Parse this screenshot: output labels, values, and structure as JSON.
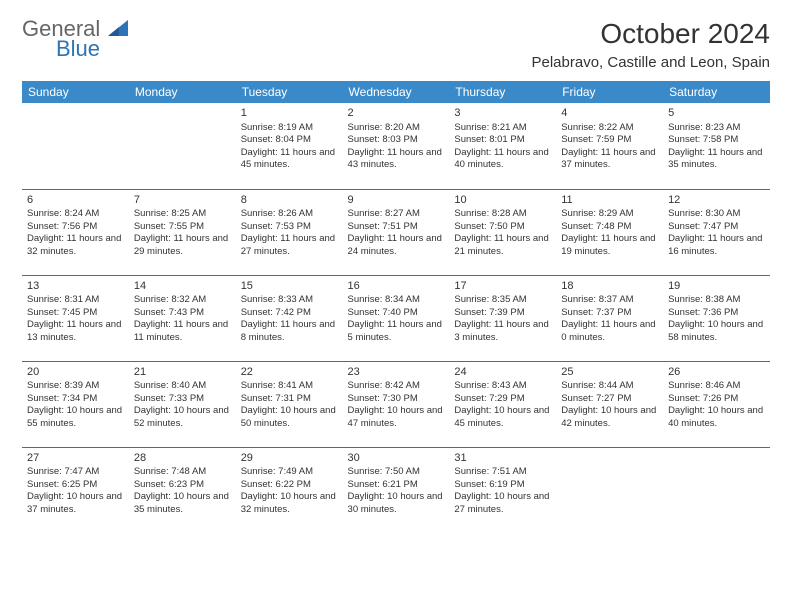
{
  "colors": {
    "header_bg": "#3a8ac9",
    "header_text": "#ffffff",
    "row_border": "#2e74b5",
    "body_text": "#333333",
    "logo_gray": "#666666",
    "logo_blue": "#2e74b5",
    "background": "#ffffff"
  },
  "typography": {
    "title_fontsize": 28,
    "location_fontsize": 15,
    "dayheader_fontsize": 12,
    "cell_fontsize": 9.5,
    "daynum_fontsize": 11
  },
  "logo": {
    "line1": "General",
    "line2": "Blue"
  },
  "title": "October 2024",
  "location": "Pelabravo, Castille and Leon, Spain",
  "day_headers": [
    "Sunday",
    "Monday",
    "Tuesday",
    "Wednesday",
    "Thursday",
    "Friday",
    "Saturday"
  ],
  "weeks": [
    [
      null,
      null,
      {
        "n": "1",
        "sr": "8:19 AM",
        "ss": "8:04 PM",
        "dl": "11 hours and 45 minutes."
      },
      {
        "n": "2",
        "sr": "8:20 AM",
        "ss": "8:03 PM",
        "dl": "11 hours and 43 minutes."
      },
      {
        "n": "3",
        "sr": "8:21 AM",
        "ss": "8:01 PM",
        "dl": "11 hours and 40 minutes."
      },
      {
        "n": "4",
        "sr": "8:22 AM",
        "ss": "7:59 PM",
        "dl": "11 hours and 37 minutes."
      },
      {
        "n": "5",
        "sr": "8:23 AM",
        "ss": "7:58 PM",
        "dl": "11 hours and 35 minutes."
      }
    ],
    [
      {
        "n": "6",
        "sr": "8:24 AM",
        "ss": "7:56 PM",
        "dl": "11 hours and 32 minutes."
      },
      {
        "n": "7",
        "sr": "8:25 AM",
        "ss": "7:55 PM",
        "dl": "11 hours and 29 minutes."
      },
      {
        "n": "8",
        "sr": "8:26 AM",
        "ss": "7:53 PM",
        "dl": "11 hours and 27 minutes."
      },
      {
        "n": "9",
        "sr": "8:27 AM",
        "ss": "7:51 PM",
        "dl": "11 hours and 24 minutes."
      },
      {
        "n": "10",
        "sr": "8:28 AM",
        "ss": "7:50 PM",
        "dl": "11 hours and 21 minutes."
      },
      {
        "n": "11",
        "sr": "8:29 AM",
        "ss": "7:48 PM",
        "dl": "11 hours and 19 minutes."
      },
      {
        "n": "12",
        "sr": "8:30 AM",
        "ss": "7:47 PM",
        "dl": "11 hours and 16 minutes."
      }
    ],
    [
      {
        "n": "13",
        "sr": "8:31 AM",
        "ss": "7:45 PM",
        "dl": "11 hours and 13 minutes."
      },
      {
        "n": "14",
        "sr": "8:32 AM",
        "ss": "7:43 PM",
        "dl": "11 hours and 11 minutes."
      },
      {
        "n": "15",
        "sr": "8:33 AM",
        "ss": "7:42 PM",
        "dl": "11 hours and 8 minutes."
      },
      {
        "n": "16",
        "sr": "8:34 AM",
        "ss": "7:40 PM",
        "dl": "11 hours and 5 minutes."
      },
      {
        "n": "17",
        "sr": "8:35 AM",
        "ss": "7:39 PM",
        "dl": "11 hours and 3 minutes."
      },
      {
        "n": "18",
        "sr": "8:37 AM",
        "ss": "7:37 PM",
        "dl": "11 hours and 0 minutes."
      },
      {
        "n": "19",
        "sr": "8:38 AM",
        "ss": "7:36 PM",
        "dl": "10 hours and 58 minutes."
      }
    ],
    [
      {
        "n": "20",
        "sr": "8:39 AM",
        "ss": "7:34 PM",
        "dl": "10 hours and 55 minutes."
      },
      {
        "n": "21",
        "sr": "8:40 AM",
        "ss": "7:33 PM",
        "dl": "10 hours and 52 minutes."
      },
      {
        "n": "22",
        "sr": "8:41 AM",
        "ss": "7:31 PM",
        "dl": "10 hours and 50 minutes."
      },
      {
        "n": "23",
        "sr": "8:42 AM",
        "ss": "7:30 PM",
        "dl": "10 hours and 47 minutes."
      },
      {
        "n": "24",
        "sr": "8:43 AM",
        "ss": "7:29 PM",
        "dl": "10 hours and 45 minutes."
      },
      {
        "n": "25",
        "sr": "8:44 AM",
        "ss": "7:27 PM",
        "dl": "10 hours and 42 minutes."
      },
      {
        "n": "26",
        "sr": "8:46 AM",
        "ss": "7:26 PM",
        "dl": "10 hours and 40 minutes."
      }
    ],
    [
      {
        "n": "27",
        "sr": "7:47 AM",
        "ss": "6:25 PM",
        "dl": "10 hours and 37 minutes."
      },
      {
        "n": "28",
        "sr": "7:48 AM",
        "ss": "6:23 PM",
        "dl": "10 hours and 35 minutes."
      },
      {
        "n": "29",
        "sr": "7:49 AM",
        "ss": "6:22 PM",
        "dl": "10 hours and 32 minutes."
      },
      {
        "n": "30",
        "sr": "7:50 AM",
        "ss": "6:21 PM",
        "dl": "10 hours and 30 minutes."
      },
      {
        "n": "31",
        "sr": "7:51 AM",
        "ss": "6:19 PM",
        "dl": "10 hours and 27 minutes."
      },
      null,
      null
    ]
  ],
  "labels": {
    "sunrise": "Sunrise:",
    "sunset": "Sunset:",
    "daylight": "Daylight:"
  }
}
